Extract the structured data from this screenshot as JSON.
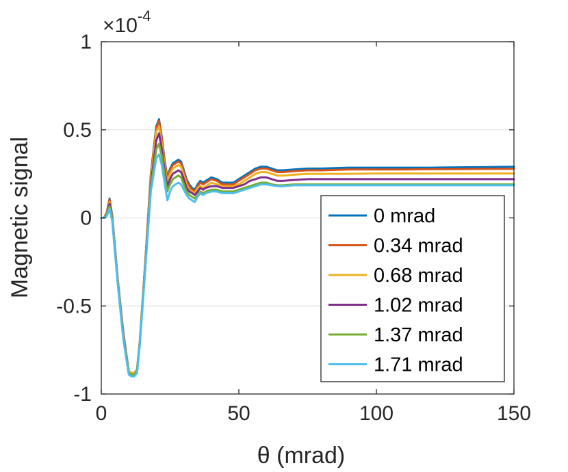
{
  "chart_data": {
    "type": "line",
    "title": "",
    "xlabel": "θ (mrad)",
    "ylabel": "Magnetic signal",
    "exponent_label": "×10",
    "exponent_power": "-4",
    "xlim": [
      0,
      150
    ],
    "ylim": [
      -1,
      1
    ],
    "xticks": [
      0,
      50,
      100,
      150
    ],
    "xtick_labels": [
      "0",
      "50",
      "100",
      "150"
    ],
    "yticks": [
      -1,
      -0.5,
      0,
      0.5,
      1
    ],
    "ytick_labels": [
      "-1",
      "-0.5",
      "0",
      "0.5",
      "1"
    ],
    "grid": "horizontal",
    "legend_position": "lower-right",
    "x": [
      0,
      1,
      2,
      3,
      4,
      6,
      8,
      10,
      11,
      12,
      13,
      14,
      16,
      18,
      20,
      21,
      22,
      23,
      24,
      25,
      26,
      27,
      28,
      29,
      30,
      31,
      32,
      33,
      34,
      35,
      36,
      37,
      38,
      40,
      42,
      44,
      46,
      48,
      50,
      52,
      54,
      56,
      58,
      60,
      62,
      64,
      66,
      70,
      75,
      80,
      90,
      100,
      110,
      120,
      130,
      140,
      150
    ],
    "series": [
      {
        "name": "0 mrad",
        "color": "#0072BD",
        "values": [
          0,
          0,
          0.03,
          0.11,
          0.01,
          -0.35,
          -0.65,
          -0.87,
          -0.88,
          -0.88,
          -0.86,
          -0.7,
          -0.25,
          0.25,
          0.52,
          0.56,
          0.46,
          0.33,
          0.23,
          0.28,
          0.31,
          0.32,
          0.33,
          0.32,
          0.27,
          0.22,
          0.19,
          0.17,
          0.16,
          0.19,
          0.21,
          0.2,
          0.21,
          0.23,
          0.22,
          0.2,
          0.2,
          0.2,
          0.22,
          0.24,
          0.26,
          0.28,
          0.29,
          0.29,
          0.28,
          0.27,
          0.27,
          0.275,
          0.28,
          0.28,
          0.285,
          0.285,
          0.285,
          0.285,
          0.287,
          0.288,
          0.29
        ]
      },
      {
        "name": "0.34 mrad",
        "color": "#D95319",
        "values": [
          0,
          0,
          0.03,
          0.105,
          0.005,
          -0.35,
          -0.65,
          -0.87,
          -0.88,
          -0.88,
          -0.86,
          -0.7,
          -0.25,
          0.24,
          0.51,
          0.55,
          0.45,
          0.32,
          0.22,
          0.27,
          0.3,
          0.31,
          0.32,
          0.31,
          0.26,
          0.21,
          0.18,
          0.16,
          0.15,
          0.18,
          0.2,
          0.19,
          0.2,
          0.22,
          0.21,
          0.19,
          0.19,
          0.19,
          0.21,
          0.23,
          0.25,
          0.27,
          0.28,
          0.28,
          0.27,
          0.26,
          0.26,
          0.265,
          0.27,
          0.27,
          0.275,
          0.275,
          0.275,
          0.276,
          0.277,
          0.278,
          0.278
        ]
      },
      {
        "name": "0.68 mrad",
        "color": "#EDB120",
        "values": [
          0,
          0,
          0.02,
          0.09,
          0,
          -0.36,
          -0.66,
          -0.87,
          -0.88,
          -0.88,
          -0.86,
          -0.7,
          -0.26,
          0.22,
          0.49,
          0.52,
          0.42,
          0.3,
          0.2,
          0.25,
          0.28,
          0.29,
          0.3,
          0.29,
          0.24,
          0.19,
          0.16,
          0.15,
          0.14,
          0.17,
          0.18,
          0.17,
          0.18,
          0.2,
          0.19,
          0.18,
          0.18,
          0.18,
          0.19,
          0.21,
          0.23,
          0.25,
          0.26,
          0.26,
          0.25,
          0.24,
          0.24,
          0.245,
          0.25,
          0.25,
          0.25,
          0.252,
          0.252,
          0.252,
          0.252,
          0.252,
          0.252
        ]
      },
      {
        "name": "1.02 mrad",
        "color": "#7E2F8E",
        "values": [
          0,
          0,
          0.02,
          0.08,
          -0.01,
          -0.37,
          -0.67,
          -0.88,
          -0.89,
          -0.89,
          -0.87,
          -0.71,
          -0.27,
          0.19,
          0.44,
          0.48,
          0.39,
          0.27,
          0.18,
          0.22,
          0.25,
          0.26,
          0.27,
          0.26,
          0.22,
          0.17,
          0.15,
          0.14,
          0.13,
          0.15,
          0.17,
          0.16,
          0.17,
          0.18,
          0.18,
          0.17,
          0.17,
          0.17,
          0.18,
          0.19,
          0.21,
          0.22,
          0.23,
          0.23,
          0.22,
          0.21,
          0.21,
          0.215,
          0.22,
          0.22,
          0.22,
          0.22,
          0.22,
          0.22,
          0.22,
          0.22,
          0.22
        ]
      },
      {
        "name": "1.37 mrad",
        "color": "#77AC30",
        "values": [
          0,
          0,
          0.02,
          0.065,
          -0.015,
          -0.37,
          -0.68,
          -0.88,
          -0.89,
          -0.89,
          -0.87,
          -0.71,
          -0.28,
          0.17,
          0.39,
          0.42,
          0.35,
          0.24,
          0.15,
          0.19,
          0.22,
          0.23,
          0.24,
          0.23,
          0.19,
          0.15,
          0.13,
          0.12,
          0.11,
          0.13,
          0.15,
          0.14,
          0.15,
          0.16,
          0.16,
          0.15,
          0.15,
          0.15,
          0.16,
          0.17,
          0.18,
          0.19,
          0.2,
          0.2,
          0.19,
          0.185,
          0.185,
          0.19,
          0.19,
          0.19,
          0.19,
          0.19,
          0.19,
          0.19,
          0.19,
          0.19,
          0.19
        ]
      },
      {
        "name": "1.71 mrad",
        "color": "#4DBEEE",
        "values": [
          0,
          0,
          0.01,
          0.05,
          -0.02,
          -0.38,
          -0.69,
          -0.89,
          -0.9,
          -0.9,
          -0.88,
          -0.72,
          -0.29,
          0.15,
          0.34,
          0.36,
          0.3,
          0.2,
          0.1,
          0.15,
          0.18,
          0.19,
          0.2,
          0.19,
          0.16,
          0.13,
          0.11,
          0.1,
          0.09,
          0.12,
          0.14,
          0.13,
          0.14,
          0.15,
          0.15,
          0.14,
          0.14,
          0.14,
          0.15,
          0.16,
          0.17,
          0.18,
          0.19,
          0.19,
          0.185,
          0.18,
          0.18,
          0.185,
          0.185,
          0.185,
          0.185,
          0.185,
          0.185,
          0.185,
          0.185,
          0.185,
          0.185
        ]
      }
    ]
  }
}
